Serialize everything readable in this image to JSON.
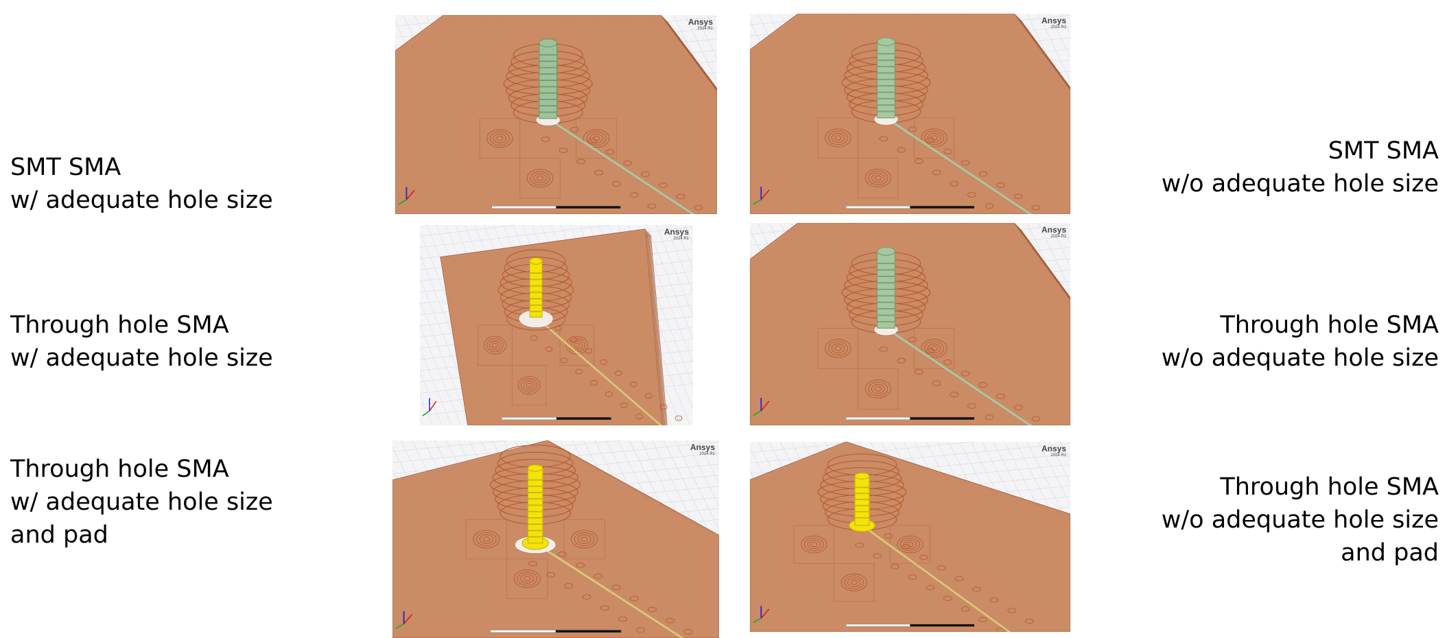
{
  "rows": [
    {
      "left_lines": [
        "SMT SMA",
        "w/ adequate hole size"
      ],
      "right_lines": [
        "SMT SMA ",
        "w/o adequate hole size"
      ]
    },
    {
      "left_lines": [
        "Through hole SMA",
        "w/ adequate hole size"
      ],
      "right_lines": [
        "Through hole SMA ",
        "w/o adequate hole size"
      ]
    },
    {
      "left_lines": [
        "Through hole SMA",
        "w/ adequate hole size",
        "and pad"
      ],
      "right_lines": [
        "Through hole SMA",
        "w/o adequate hole size",
        "and pad"
      ]
    }
  ],
  "panels": [
    {
      "brand": "Ansys",
      "version": "2024 R1",
      "pin_color": "#9fc29a",
      "pin_dark": "#6f9a6c"
    },
    {
      "brand": "Ansys",
      "version": "2024 R1",
      "pin_color": "#a7c7a1",
      "pin_dark": "#76a071"
    },
    {
      "brand": "Ansys",
      "version": "2024 R1",
      "pin_color": "#f4e20c",
      "pin_dark": "#c9b400"
    },
    {
      "brand": "Ansys",
      "version": "2024 R1",
      "pin_color": "#a7c7a1",
      "pin_dark": "#76a071"
    },
    {
      "brand": "Ansys",
      "version": "2024 R1",
      "pin_color": "#f4e20c",
      "pin_dark": "#c9b400"
    },
    {
      "brand": "Ansys",
      "version": "2024 R1",
      "pin_color": "#f4e20c",
      "pin_dark": "#c9b400"
    }
  ],
  "colors": {
    "board": "#c98a64",
    "board_edge": "#a8603c",
    "ring": "#b5582c",
    "trace": "#d9c77a"
  }
}
